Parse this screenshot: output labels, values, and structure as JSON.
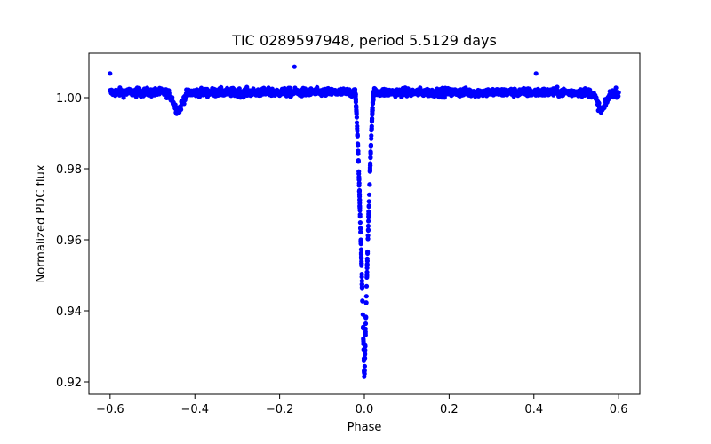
{
  "chart_data": {
    "type": "scatter",
    "title": "TIC 0289597948, period 5.5129 days",
    "xlabel": "Phase",
    "ylabel": "Normalized PDC flux",
    "xlim": [
      -0.65,
      0.65
    ],
    "ylim": [
      0.9165,
      1.0125
    ],
    "xticks": [
      -0.6,
      -0.4,
      -0.2,
      0.0,
      0.2,
      0.4,
      0.6
    ],
    "xtick_labels": [
      "−0.6",
      "−0.4",
      "−0.2",
      "0.0",
      "0.2",
      "0.4",
      "0.6"
    ],
    "yticks": [
      0.92,
      0.94,
      0.96,
      0.98,
      1.0
    ],
    "ytick_labels": [
      "0.92",
      "0.94",
      "0.96",
      "0.98",
      "1.00"
    ],
    "marker_color": "#0000ff",
    "baseline_flux": 1.0015,
    "primary_eclipse": {
      "phase": 0.0,
      "min_flux": 0.9205,
      "half_width": 0.022
    },
    "secondary_eclipses": [
      {
        "phase": -0.44,
        "min_flux": 0.9965,
        "half_width": 0.02
      },
      {
        "phase": 0.56,
        "min_flux": 0.9965,
        "half_width": 0.02
      }
    ],
    "outliers": [
      {
        "x": -0.6,
        "y": 1.0068
      },
      {
        "x": -0.165,
        "y": 1.0087
      },
      {
        "x": 0.405,
        "y": 1.0068
      }
    ]
  }
}
